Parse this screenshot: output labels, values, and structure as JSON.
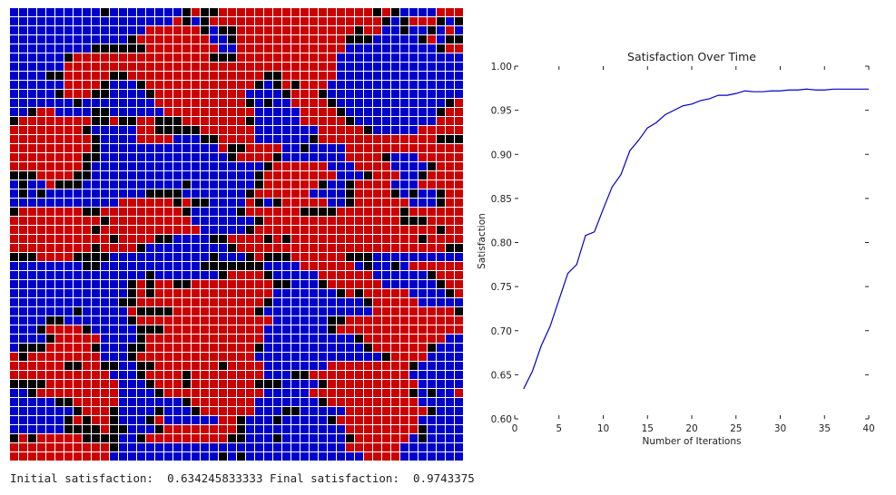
{
  "grid": {
    "rows": 50,
    "cols": 50,
    "cell_colors": {
      "A": "#0000cc",
      "B": "#cc0000",
      "E": "#000000"
    },
    "grid_line_color": "#ffffff",
    "state": [
      "AAAAAAAAAAEAAAAAAAAEBEEBBBBBBBBBBBBBBBBBEBEAAAABBBEA",
      "AAAAAAAAAAAAAAAAAABEAEBBBBBBBBBBBBBBBBBBBEAEBBBEAE",
      "AAAAAAAAAAAAAAABBBBBBEAEEBBBBBBBBBBBBBEBBAAEAAEABAA",
      "AAAAAAAAAAAAAEBBBBBBBBAAEBBBBBBBBBBBBEEEAAAAAEBAEEA",
      "AAAAAAAAAEEEEEEBBBBBBBBAABBBBBBBBBBBBAAAAAAAAAAEBBA",
      "AAAAAAEBBBBBBBBBBBBBBBEEEBBBBBBBBBBBAAAAAAAAAAAAAAA",
      "AAAAAABBBBBBBBBBBBBBBBBBBBBBBBBBBBBBAAAAAAAAAAAAAAA",
      "AAAAEEBBBBBEEBBBBBBBBBBBBBBBEEBBBBBBAAAAAAAAAAAAAAA",
      "AAAAAABBBBEAAAEBBBBBBBBBBBBEAEBEBBBAAAAAAAAAAAAAAA",
      "AAAAAEBBBEEAAAAEBBBBBBBBBBAAAAEBBBEAAAAAAAAAAAAAAA",
      "AAAAAAAEAAAAAAAABBBBBBBBBBEAEAABBBBEAAAAAAAAAAAAEBB",
      "AAEBBAAAAEEAAAAAABBBBBBBBBBAAAAABBBBEAAAAAAAAAAEBBB",
      "EBBBBBBBBEEBEEBBEEEBBBBBBBEAAAAABBBBBEAAAAAAAAABBBB",
      "BBBBBBBBEAAAAABBEEEEEBBBBBBAAAAAAABBBBBEAAAAABBBBB",
      "BBBBBBBBBEAAAABBBBAAAEEBBBBAAAAAAEBBBBBBBBBBBBBEEEE",
      "BBBBBBBBBEAAAAAAAAAAAAABEEBBBBAAEAAAABBBBBBBBBBBBBB",
      "BBBBBBBBEEAAAAAAAAAAAAAAEBBBBEAAAAAAABBBBEAAABBBBB",
      "BBBBBBBBEAAAAAAAAAAAAAAAAAAAEBBBBBBAAABBBBAAAAEBBBBB",
      "EEEBBBBEEAAAAAAAAAAAAAAAAAAEBBBBBBBBAAAEBBBAAEBBBBB",
      "AEAABEEEAAAAAAAAAAAEAAAAAAAEBBBBBBEAAEBBBBAAABBBBB",
      "AEAEAAAAAAAAAAAEEEEAAAAAAAEBBBBBBAAAAEBBBBEAEAAEBBB",
      "AAAAAAAAAAAABBBBBBEBEEAAAABEAEBBBBBAAEBBBBBBAAAEBBBB",
      "EBBBBBBBEEBBBBBBBBBEAAAAAEBBBBBBEEEEBBBBBBBEBBBBBB",
      "BBBBBBBBBBEBBBBBBBBBAAAAAAAEBBBBBBBBBBBBBBBEEEBBBBB",
      "BBBBBBBBBEBBBBBBBBBBBAAAAAEBBBBBBBBBBBBBBBBBBBBEBBB",
      "BBBBBBBBBBBEBBBBEEAAAAEEBBBBEBEBBBBBBBBBBBBBBEBBBB",
      "BBBBBBBBBEBBBBEAAAAAAAAAEBBBBBBBBBBBBBBBBBBBBBBBE",
      "EEEBBBBEEEEAAAAAAAAAAAEAAAEBEEEBBBBBBEEEAAAAAAAAAA",
      "AAAAAAAAEEAAAAAAAAAAAEEEEEEEAAAABBBBBBAEAAEABBBBB",
      "AAAAAAAAAAAAAAAEAAAAAAAEBBBBEAAAAABBBBBBAAAAAAEBBB",
      "AAAAAAAAAAAAAEBEBBEEBBBBBBBBBEEAAAEBBBBBBAAAAAAEBBB",
      "AAAAAAAAAAAAAEBEBBBBBBBBBBBBBAAAAAAAEBEBBBBBAAAAEBBE",
      "AAAAAAAAAAAAEEBBBBBBBBBBBBBBEAAAAAAAAAAEBBBBBAAAAAAE",
      "AAAAAAAEAAAAABEEEEBBBBBBBBBEAAAAAAAAAAAABBBBBBBBBEEE",
      "AAAAEEAAAAAAAEBBBBBBBBBBBBBBBAAAAAAEEBBBBBBBBBBBBBBB",
      "AAAEBBBBEAAAAAEEEBBBBBBBBBBBAAAAAAAEBBBBBBBBBBBBBBB",
      "AAAAEBBBBBAAAAEBBBBBBBBBBBBBAAAAAAAAAAEBBBBBBBBBAAA",
      "AEEEBBBBBEAAAEEBBBBBBBBBBBBEAAAAAAAAAAAEBBBBBBEAAAA",
      "BEBBBBBBBBAAAEBBBBBBBBBBBBBAAAAAAAAAAAAAAEBBBBAAAAA",
      "BBBBBBEEBBEEAAEEBBBBBBBEBBBBAAAAAAABBBBBBBBBEAAAAA",
      "BBBBBBBBBBBAAAEBBBBEBBBBBBBBAAAEEBBBBBBBBBBBAAAAAA",
      "EEEEBBBBBBBBAAAEBBBEBBBBBBBEEEAAAAEBBBBBBBBBBAAAAAA",
      "AAEBBBBBBBBBAAAAEBBBBBBBBBBBAAAAABBBBBBBBBBBEAEAABB",
      "AAAAAEEBBBBBAAAAAAAEBBBBBBBAAAAAAAEBBBBBBBBBBAAAAAA",
      "AAAAAAAEBBBEAAAAEAAAEBBBBBBAAAEEAAAAABBBBBBBBBEAAAAA",
      "AAAAAAEBEBBEAAAEBAAAAAABBEAAAEAAAAAEBBBBBBBBBAAAAAA",
      "AAAAAAEEEEBEEAAAEBBBBBBBBEAAAAAAAAAAABBBBBBBBEAAAAA",
      "EBEBBBBBEEEEAAEBBBBBBBBBEEAAAEAAAAAAAEBBBBBBAEAAAAA",
      "BBBBBBBBBBBEAAAAAAAAAAAAAAAAAAAAAAAAABBBBBBAAAAAAA",
      "BBBBBBBBBBBAAAAAAAAAAAAEAEAAAAAAAAAAAAABBBBAAAAAAAA"
    ]
  },
  "chart_data": {
    "type": "line",
    "title": "Satisfaction Over Time",
    "xlabel": "Number of Iterations",
    "ylabel": "Satisfaction",
    "xlim": [
      0,
      40
    ],
    "ylim": [
      0.6,
      1.0
    ],
    "xticks": [
      0,
      5,
      10,
      15,
      20,
      25,
      30,
      35,
      40
    ],
    "yticks": [
      0.6,
      0.65,
      0.7,
      0.75,
      0.8,
      0.85,
      0.9,
      0.95,
      1.0
    ],
    "ytick_labels": [
      "0.60",
      "0.65",
      "0.70",
      "0.75",
      "0.80",
      "0.85",
      "0.90",
      "0.95",
      "1.00"
    ],
    "grid": false,
    "line_color": "#0000cc",
    "series": [
      {
        "x": [
          1,
          2,
          3,
          4,
          5,
          6,
          7,
          8,
          9,
          10,
          11,
          12,
          13,
          14,
          15,
          16,
          17,
          18,
          19,
          20,
          21,
          22,
          23,
          24,
          25,
          26,
          27,
          28,
          29,
          30,
          31,
          32,
          33,
          34,
          35,
          36,
          37,
          38,
          39,
          40
        ],
        "y": [
          0.634,
          0.654,
          0.683,
          0.705,
          0.735,
          0.765,
          0.775,
          0.808,
          0.812,
          0.838,
          0.863,
          0.877,
          0.904,
          0.916,
          0.93,
          0.936,
          0.945,
          0.95,
          0.955,
          0.957,
          0.961,
          0.963,
          0.967,
          0.967,
          0.969,
          0.972,
          0.971,
          0.971,
          0.972,
          0.972,
          0.973,
          0.973,
          0.974,
          0.973,
          0.973,
          0.974,
          0.974,
          0.974,
          0.974,
          0.974
        ]
      }
    ]
  },
  "summary": {
    "initial_label": "Initial satisfaction: ",
    "initial_value": "0.634245833333",
    "final_label": "Final satisfaction: ",
    "final_value": "0.9743375"
  }
}
